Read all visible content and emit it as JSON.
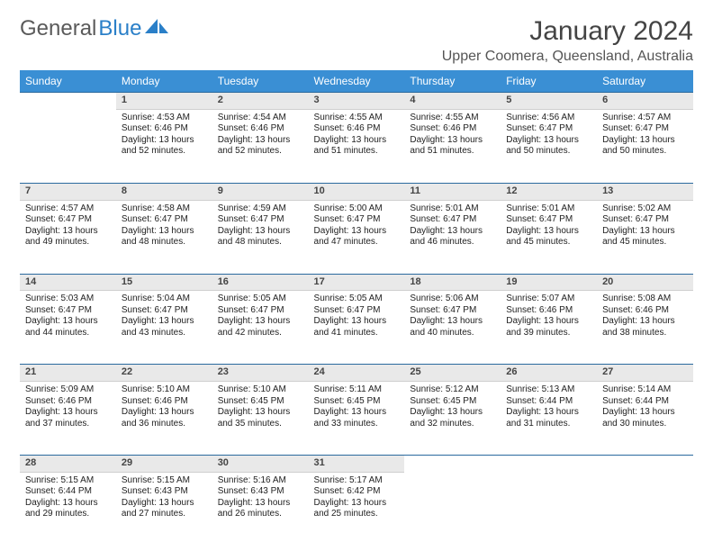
{
  "logo": {
    "part1": "General",
    "part2": "Blue"
  },
  "header": {
    "month_title": "January 2024",
    "location": "Upper Coomera, Queensland, Australia"
  },
  "calendar": {
    "type": "table",
    "header_bg": "#3a8fd4",
    "header_fg": "#ffffff",
    "daynum_bg": "#e9e9e9",
    "divider_color": "#2a6a9e",
    "columns": [
      "Sunday",
      "Monday",
      "Tuesday",
      "Wednesday",
      "Thursday",
      "Friday",
      "Saturday"
    ],
    "weeks": [
      {
        "nums": [
          "",
          "1",
          "2",
          "3",
          "4",
          "5",
          "6"
        ],
        "cells": [
          null,
          {
            "sunrise": "Sunrise: 4:53 AM",
            "sunset": "Sunset: 6:46 PM",
            "daylight1": "Daylight: 13 hours",
            "daylight2": "and 52 minutes."
          },
          {
            "sunrise": "Sunrise: 4:54 AM",
            "sunset": "Sunset: 6:46 PM",
            "daylight1": "Daylight: 13 hours",
            "daylight2": "and 52 minutes."
          },
          {
            "sunrise": "Sunrise: 4:55 AM",
            "sunset": "Sunset: 6:46 PM",
            "daylight1": "Daylight: 13 hours",
            "daylight2": "and 51 minutes."
          },
          {
            "sunrise": "Sunrise: 4:55 AM",
            "sunset": "Sunset: 6:46 PM",
            "daylight1": "Daylight: 13 hours",
            "daylight2": "and 51 minutes."
          },
          {
            "sunrise": "Sunrise: 4:56 AM",
            "sunset": "Sunset: 6:47 PM",
            "daylight1": "Daylight: 13 hours",
            "daylight2": "and 50 minutes."
          },
          {
            "sunrise": "Sunrise: 4:57 AM",
            "sunset": "Sunset: 6:47 PM",
            "daylight1": "Daylight: 13 hours",
            "daylight2": "and 50 minutes."
          }
        ]
      },
      {
        "nums": [
          "7",
          "8",
          "9",
          "10",
          "11",
          "12",
          "13"
        ],
        "cells": [
          {
            "sunrise": "Sunrise: 4:57 AM",
            "sunset": "Sunset: 6:47 PM",
            "daylight1": "Daylight: 13 hours",
            "daylight2": "and 49 minutes."
          },
          {
            "sunrise": "Sunrise: 4:58 AM",
            "sunset": "Sunset: 6:47 PM",
            "daylight1": "Daylight: 13 hours",
            "daylight2": "and 48 minutes."
          },
          {
            "sunrise": "Sunrise: 4:59 AM",
            "sunset": "Sunset: 6:47 PM",
            "daylight1": "Daylight: 13 hours",
            "daylight2": "and 48 minutes."
          },
          {
            "sunrise": "Sunrise: 5:00 AM",
            "sunset": "Sunset: 6:47 PM",
            "daylight1": "Daylight: 13 hours",
            "daylight2": "and 47 minutes."
          },
          {
            "sunrise": "Sunrise: 5:01 AM",
            "sunset": "Sunset: 6:47 PM",
            "daylight1": "Daylight: 13 hours",
            "daylight2": "and 46 minutes."
          },
          {
            "sunrise": "Sunrise: 5:01 AM",
            "sunset": "Sunset: 6:47 PM",
            "daylight1": "Daylight: 13 hours",
            "daylight2": "and 45 minutes."
          },
          {
            "sunrise": "Sunrise: 5:02 AM",
            "sunset": "Sunset: 6:47 PM",
            "daylight1": "Daylight: 13 hours",
            "daylight2": "and 45 minutes."
          }
        ]
      },
      {
        "nums": [
          "14",
          "15",
          "16",
          "17",
          "18",
          "19",
          "20"
        ],
        "cells": [
          {
            "sunrise": "Sunrise: 5:03 AM",
            "sunset": "Sunset: 6:47 PM",
            "daylight1": "Daylight: 13 hours",
            "daylight2": "and 44 minutes."
          },
          {
            "sunrise": "Sunrise: 5:04 AM",
            "sunset": "Sunset: 6:47 PM",
            "daylight1": "Daylight: 13 hours",
            "daylight2": "and 43 minutes."
          },
          {
            "sunrise": "Sunrise: 5:05 AM",
            "sunset": "Sunset: 6:47 PM",
            "daylight1": "Daylight: 13 hours",
            "daylight2": "and 42 minutes."
          },
          {
            "sunrise": "Sunrise: 5:05 AM",
            "sunset": "Sunset: 6:47 PM",
            "daylight1": "Daylight: 13 hours",
            "daylight2": "and 41 minutes."
          },
          {
            "sunrise": "Sunrise: 5:06 AM",
            "sunset": "Sunset: 6:47 PM",
            "daylight1": "Daylight: 13 hours",
            "daylight2": "and 40 minutes."
          },
          {
            "sunrise": "Sunrise: 5:07 AM",
            "sunset": "Sunset: 6:46 PM",
            "daylight1": "Daylight: 13 hours",
            "daylight2": "and 39 minutes."
          },
          {
            "sunrise": "Sunrise: 5:08 AM",
            "sunset": "Sunset: 6:46 PM",
            "daylight1": "Daylight: 13 hours",
            "daylight2": "and 38 minutes."
          }
        ]
      },
      {
        "nums": [
          "21",
          "22",
          "23",
          "24",
          "25",
          "26",
          "27"
        ],
        "cells": [
          {
            "sunrise": "Sunrise: 5:09 AM",
            "sunset": "Sunset: 6:46 PM",
            "daylight1": "Daylight: 13 hours",
            "daylight2": "and 37 minutes."
          },
          {
            "sunrise": "Sunrise: 5:10 AM",
            "sunset": "Sunset: 6:46 PM",
            "daylight1": "Daylight: 13 hours",
            "daylight2": "and 36 minutes."
          },
          {
            "sunrise": "Sunrise: 5:10 AM",
            "sunset": "Sunset: 6:45 PM",
            "daylight1": "Daylight: 13 hours",
            "daylight2": "and 35 minutes."
          },
          {
            "sunrise": "Sunrise: 5:11 AM",
            "sunset": "Sunset: 6:45 PM",
            "daylight1": "Daylight: 13 hours",
            "daylight2": "and 33 minutes."
          },
          {
            "sunrise": "Sunrise: 5:12 AM",
            "sunset": "Sunset: 6:45 PM",
            "daylight1": "Daylight: 13 hours",
            "daylight2": "and 32 minutes."
          },
          {
            "sunrise": "Sunrise: 5:13 AM",
            "sunset": "Sunset: 6:44 PM",
            "daylight1": "Daylight: 13 hours",
            "daylight2": "and 31 minutes."
          },
          {
            "sunrise": "Sunrise: 5:14 AM",
            "sunset": "Sunset: 6:44 PM",
            "daylight1": "Daylight: 13 hours",
            "daylight2": "and 30 minutes."
          }
        ]
      },
      {
        "nums": [
          "28",
          "29",
          "30",
          "31",
          "",
          "",
          ""
        ],
        "cells": [
          {
            "sunrise": "Sunrise: 5:15 AM",
            "sunset": "Sunset: 6:44 PM",
            "daylight1": "Daylight: 13 hours",
            "daylight2": "and 29 minutes."
          },
          {
            "sunrise": "Sunrise: 5:15 AM",
            "sunset": "Sunset: 6:43 PM",
            "daylight1": "Daylight: 13 hours",
            "daylight2": "and 27 minutes."
          },
          {
            "sunrise": "Sunrise: 5:16 AM",
            "sunset": "Sunset: 6:43 PM",
            "daylight1": "Daylight: 13 hours",
            "daylight2": "and 26 minutes."
          },
          {
            "sunrise": "Sunrise: 5:17 AM",
            "sunset": "Sunset: 6:42 PM",
            "daylight1": "Daylight: 13 hours",
            "daylight2": "and 25 minutes."
          },
          null,
          null,
          null
        ]
      }
    ]
  }
}
